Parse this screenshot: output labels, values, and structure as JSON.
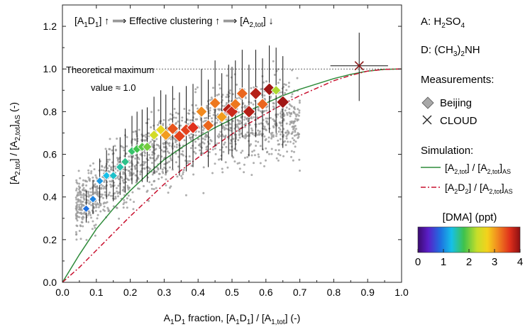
{
  "chart_data": {
    "type": "scatter",
    "title": "",
    "header_annotation": "[A1D1] ↑ ⟹ Effective clustering ↑ ⟹ [A2,tot] ↓",
    "xlabel": "A1D1 fraction, [A1D1] / [A1,tot] (-)",
    "ylabel": "[A2,tot] / [A2,tot]AS (-)",
    "xlim": [
      0.0,
      1.0
    ],
    "ylim": [
      0.0,
      1.3
    ],
    "x_ticks": [
      "0.0",
      "0.1",
      "0.2",
      "0.3",
      "0.4",
      "0.5",
      "0.6",
      "0.7",
      "0.8",
      "0.9",
      "1.0"
    ],
    "y_ticks": [
      "0.0",
      "0.2",
      "0.4",
      "0.6",
      "0.8",
      "1.0",
      "1.2"
    ],
    "reference_line": {
      "y": 1.0,
      "style": "dotted",
      "label_line1": "Theoretical maximum",
      "label_line2": "value ≈ 1.0"
    },
    "legend": {
      "species_a": "A: H2SO4",
      "species_d": "D: (CH3)2NH",
      "measurements_title": "Measurements:",
      "beijing_label": "Beijing",
      "cloud_label": "CLOUD",
      "simulation_title": "Simulation:",
      "sim_tot_label": "[A2,tot] / [A2,tot]AS",
      "sim_a2d2_label": "[A2D2] / [A2,tot]AS",
      "colorbar_title": "[DMA] (ppt)",
      "colorbar_ticks": [
        "0",
        "1",
        "2",
        "3",
        "4"
      ],
      "colorbar_range": [
        0,
        4
      ]
    },
    "colors": {
      "simulation_total": "#2e8b3a",
      "simulation_a2d2": "#c8102e",
      "background_points": "#9a9a9a",
      "cloud_marker": "#8b1a1a"
    },
    "series": [
      {
        "name": "Beijing",
        "marker": "diamond",
        "color_by": "DMA (ppt)",
        "points": [
          {
            "x": 0.07,
            "y": 0.345,
            "ylo": 0.28,
            "yhi": 0.43,
            "dma": 0.9
          },
          {
            "x": 0.09,
            "y": 0.39,
            "ylo": 0.32,
            "yhi": 0.48,
            "dma": 1.0
          },
          {
            "x": 0.11,
            "y": 0.475,
            "ylo": 0.37,
            "yhi": 0.58,
            "dma": 1.1
          },
          {
            "x": 0.13,
            "y": 0.5,
            "ylo": 0.39,
            "yhi": 0.62,
            "dma": 1.3
          },
          {
            "x": 0.15,
            "y": 0.5,
            "ylo": 0.38,
            "yhi": 0.64,
            "dma": 1.4
          },
          {
            "x": 0.17,
            "y": 0.54,
            "ylo": 0.41,
            "yhi": 0.68,
            "dma": 1.5
          },
          {
            "x": 0.185,
            "y": 0.565,
            "ylo": 0.42,
            "yhi": 0.72,
            "dma": 1.6
          },
          {
            "x": 0.205,
            "y": 0.615,
            "ylo": 0.46,
            "yhi": 0.78,
            "dma": 1.7
          },
          {
            "x": 0.22,
            "y": 0.625,
            "ylo": 0.47,
            "yhi": 0.8,
            "dma": 1.8
          },
          {
            "x": 0.235,
            "y": 0.635,
            "ylo": 0.47,
            "yhi": 0.81,
            "dma": 1.9
          },
          {
            "x": 0.25,
            "y": 0.635,
            "ylo": 0.47,
            "yhi": 0.82,
            "dma": 2.0
          },
          {
            "x": 0.27,
            "y": 0.69,
            "ylo": 0.51,
            "yhi": 0.87,
            "dma": 2.4
          },
          {
            "x": 0.29,
            "y": 0.715,
            "ylo": 0.53,
            "yhi": 0.9,
            "dma": 2.6
          },
          {
            "x": 0.305,
            "y": 0.69,
            "ylo": 0.51,
            "yhi": 0.88,
            "dma": 3.0
          },
          {
            "x": 0.325,
            "y": 0.72,
            "ylo": 0.53,
            "yhi": 0.92,
            "dma": 3.4
          },
          {
            "x": 0.345,
            "y": 0.685,
            "ylo": 0.5,
            "yhi": 0.89,
            "dma": 3.5
          },
          {
            "x": 0.365,
            "y": 0.715,
            "ylo": 0.52,
            "yhi": 0.92,
            "dma": 3.5
          },
          {
            "x": 0.385,
            "y": 0.725,
            "ylo": 0.54,
            "yhi": 0.93,
            "dma": 3.6
          },
          {
            "x": 0.41,
            "y": 0.8,
            "ylo": 0.6,
            "yhi": 1.0,
            "dma": 3.1
          },
          {
            "x": 0.43,
            "y": 0.735,
            "ylo": 0.54,
            "yhi": 0.95,
            "dma": 3.3
          },
          {
            "x": 0.45,
            "y": 0.84,
            "ylo": 0.64,
            "yhi": 1.04,
            "dma": 3.2
          },
          {
            "x": 0.47,
            "y": 0.775,
            "ylo": 0.57,
            "yhi": 0.98,
            "dma": 3.0
          },
          {
            "x": 0.49,
            "y": 0.81,
            "ylo": 0.6,
            "yhi": 1.02,
            "dma": 3.8
          },
          {
            "x": 0.5,
            "y": 0.8,
            "ylo": 0.59,
            "yhi": 1.01,
            "dma": 3.7
          },
          {
            "x": 0.51,
            "y": 0.835,
            "ylo": 0.62,
            "yhi": 1.04,
            "dma": 3.2
          },
          {
            "x": 0.53,
            "y": 0.885,
            "ylo": 0.68,
            "yhi": 1.09,
            "dma": 3.3
          },
          {
            "x": 0.55,
            "y": 0.8,
            "ylo": 0.59,
            "yhi": 1.02,
            "dma": 3.8
          },
          {
            "x": 0.57,
            "y": 0.885,
            "ylo": 0.68,
            "yhi": 1.09,
            "dma": 3.8
          },
          {
            "x": 0.59,
            "y": 0.835,
            "ylo": 0.62,
            "yhi": 1.05,
            "dma": 3.3
          },
          {
            "x": 0.61,
            "y": 0.905,
            "ylo": 0.7,
            "yhi": 1.11,
            "dma": 3.9
          },
          {
            "x": 0.63,
            "y": 0.9,
            "ylo": 0.7,
            "yhi": 1.1,
            "dma": 2.2
          },
          {
            "x": 0.65,
            "y": 0.845,
            "ylo": 0.63,
            "yhi": 1.06,
            "dma": 3.9
          }
        ]
      },
      {
        "name": "CLOUD",
        "marker": "x",
        "points": [
          {
            "x": 0.875,
            "y": 1.015,
            "xlo": 0.79,
            "xhi": 0.96,
            "ylo": 0.85,
            "yhi": 1.17
          }
        ]
      },
      {
        "name": "[A2,tot] / [A2,tot]AS",
        "kind": "curve",
        "style": "solid",
        "x": [
          0.0,
          0.05,
          0.1,
          0.15,
          0.2,
          0.25,
          0.3,
          0.35,
          0.4,
          0.45,
          0.5,
          0.55,
          0.6,
          0.65,
          0.7,
          0.75,
          0.8,
          0.85,
          0.9,
          0.95,
          1.0
        ],
        "y": [
          0.0,
          0.13,
          0.25,
          0.345,
          0.43,
          0.505,
          0.575,
          0.63,
          0.68,
          0.725,
          0.765,
          0.805,
          0.84,
          0.875,
          0.905,
          0.93,
          0.955,
          0.975,
          0.99,
          0.998,
          1.0
        ]
      },
      {
        "name": "[A2D2] / [A2,tot]AS",
        "kind": "curve",
        "style": "dash-dot",
        "x": [
          0.0,
          0.05,
          0.1,
          0.15,
          0.2,
          0.25,
          0.3,
          0.35,
          0.4,
          0.45,
          0.5,
          0.55,
          0.6,
          0.65,
          0.7,
          0.75,
          0.8,
          0.85,
          0.9,
          0.95,
          1.0
        ],
        "y": [
          0.0,
          0.07,
          0.15,
          0.23,
          0.31,
          0.385,
          0.46,
          0.525,
          0.585,
          0.64,
          0.695,
          0.745,
          0.79,
          0.835,
          0.875,
          0.91,
          0.945,
          0.97,
          0.99,
          0.998,
          1.0
        ]
      }
    ]
  }
}
